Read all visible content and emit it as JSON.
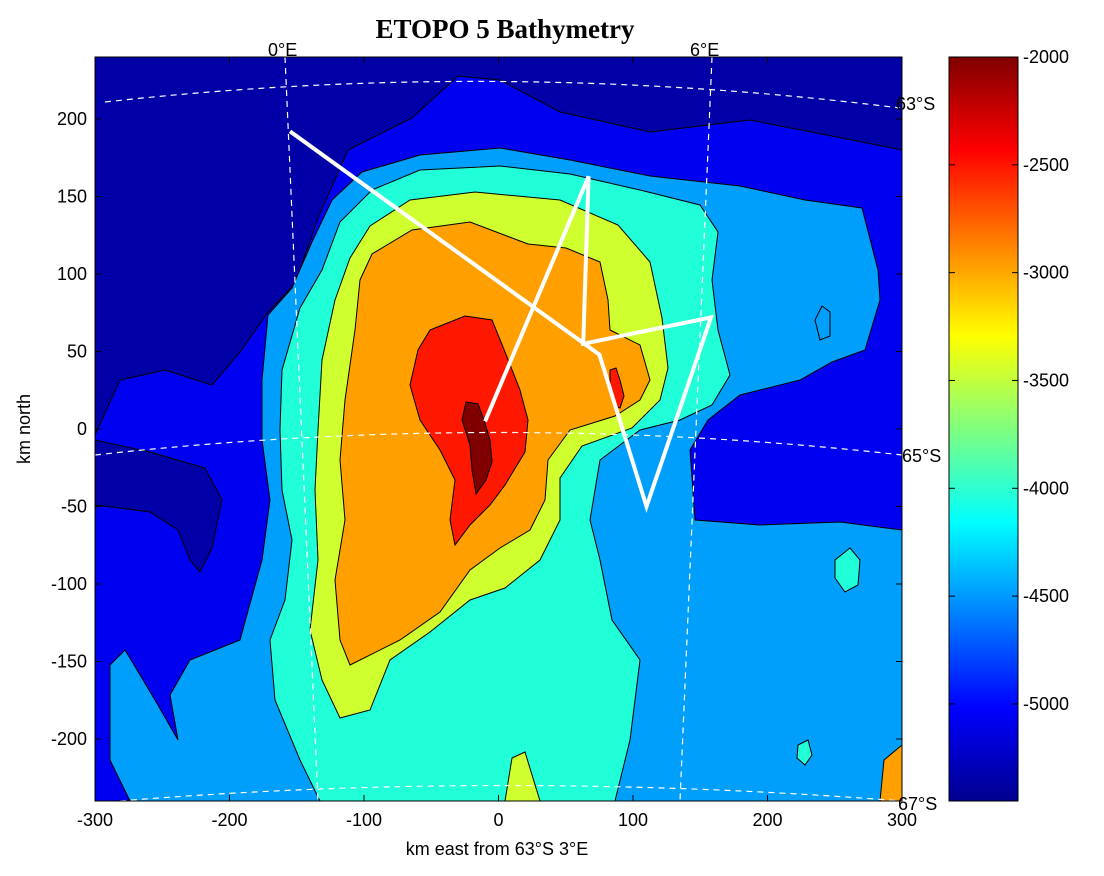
{
  "chart_data": {
    "type": "heatmap",
    "title": "ETOPO 5 Bathymetry",
    "xlabel": "km east from 63°S 3°E",
    "ylabel": "km north",
    "xlim": [
      -300,
      300
    ],
    "ylim": [
      -240,
      240
    ],
    "xticks": [
      "-300",
      "-200",
      "-100",
      "0",
      "100",
      "200",
      "300"
    ],
    "xtick_values": [
      -300,
      -200,
      -100,
      0,
      100,
      200,
      300
    ],
    "yticks": [
      "200",
      "150",
      "100",
      "50",
      "0",
      "-50",
      "-100",
      "-150",
      "-200"
    ],
    "ytick_values": [
      200,
      150,
      100,
      50,
      0,
      -50,
      -100,
      -150,
      -200
    ],
    "colorbar": {
      "range": [
        -5450,
        -2000
      ],
      "ticks": [
        "-2000",
        "-2500",
        "-3000",
        "-3500",
        "-4000",
        "-4500",
        "-5000"
      ],
      "tick_values": [
        -2000,
        -2500,
        -3000,
        -3500,
        -4000,
        -4500,
        -5000
      ],
      "colormap": "jet"
    },
    "contour_levels_m": [
      -5000,
      -4500,
      -4000,
      -3500,
      -3000,
      -2500,
      -2000
    ],
    "graticule_labels": {
      "meridians": [
        "0°E",
        "6°E"
      ],
      "parallels": [
        "63°S",
        "65°S",
        "67°S"
      ]
    },
    "ship_track": [
      [
        -155,
        192
      ],
      [
        75,
        48
      ],
      [
        110,
        -50
      ],
      [
        158,
        72
      ],
      [
        63,
        55
      ],
      [
        67,
        163
      ],
      [
        -10,
        5
      ]
    ]
  },
  "colors": {
    "track": "#ffffff",
    "graticule": "#ffffff",
    "contour_line": "#000000"
  }
}
